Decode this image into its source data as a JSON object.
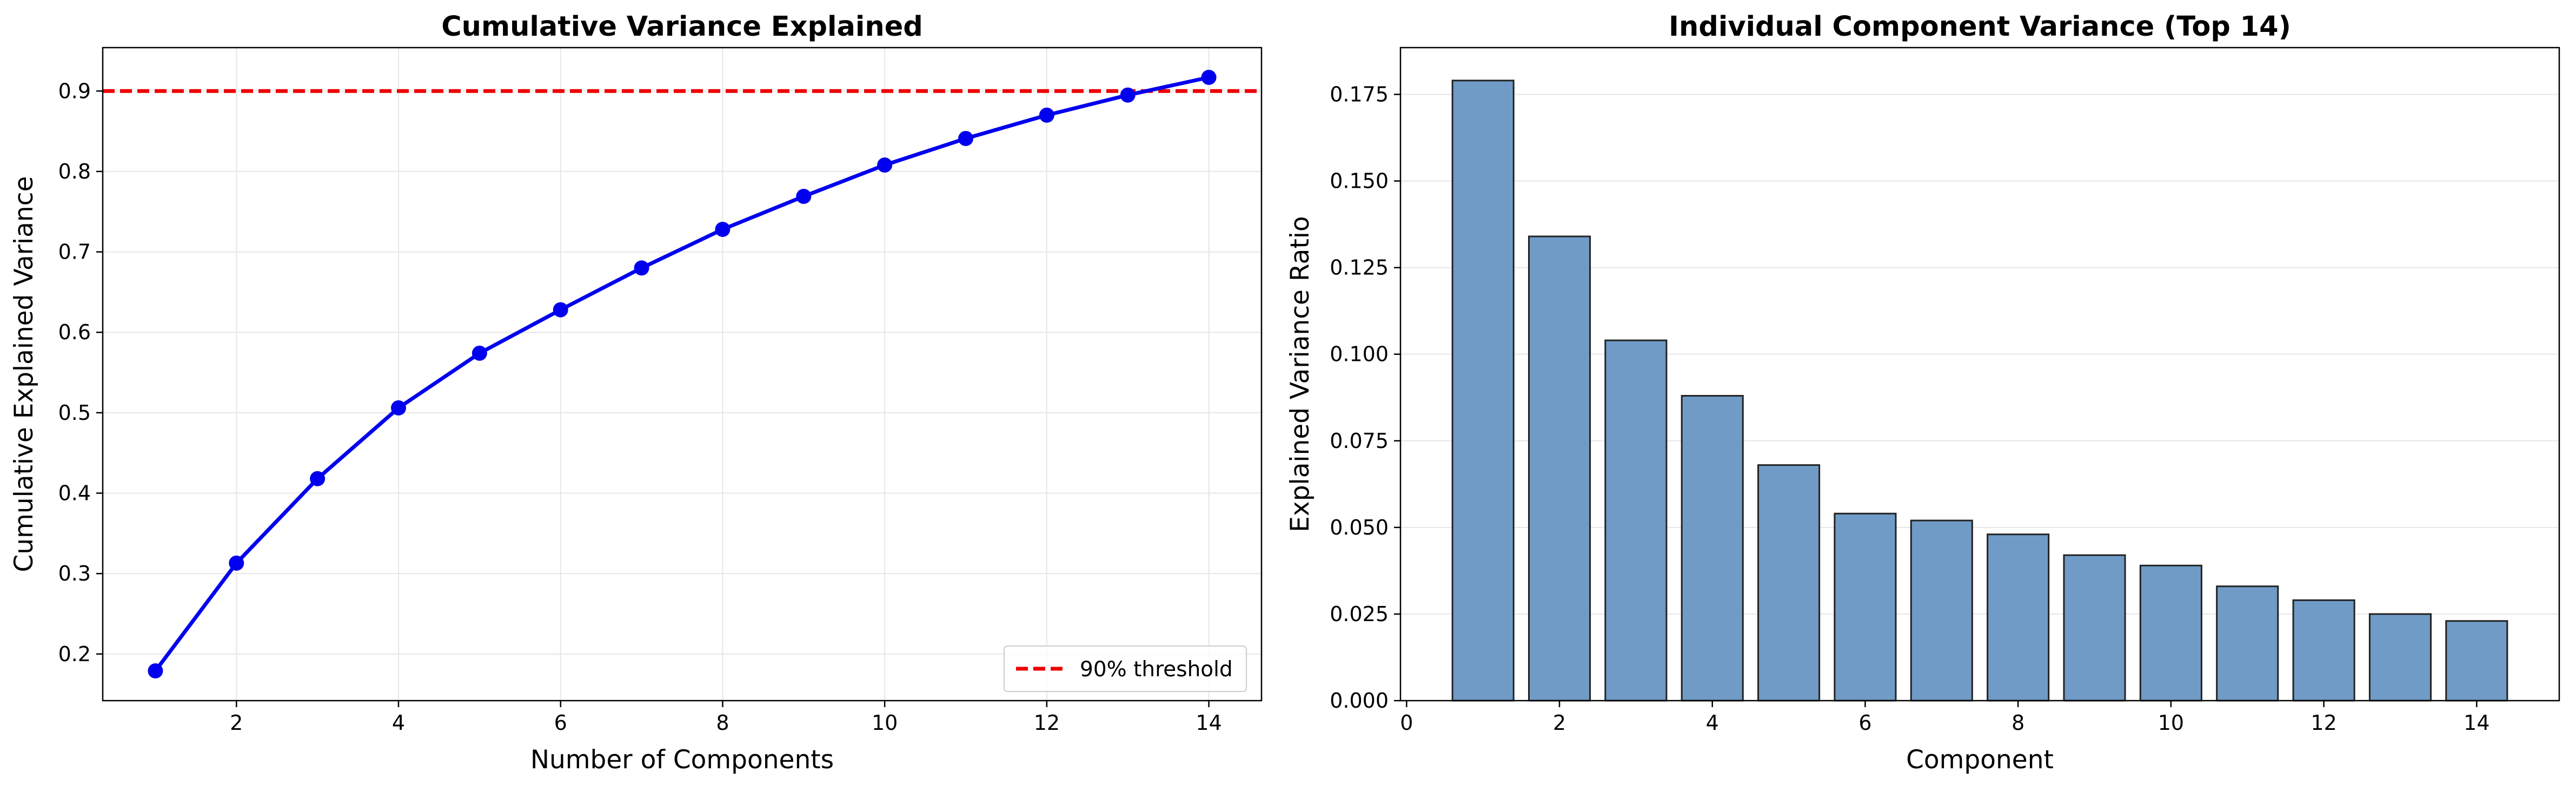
{
  "chart_data": [
    {
      "type": "line",
      "title": "Cumulative Variance Explained",
      "xlabel": "Number of Components",
      "ylabel": "Cumulative Explained Variance",
      "xlim": [
        0.35,
        14.65
      ],
      "ylim": [
        0.142,
        0.954
      ],
      "xticks": [
        2,
        4,
        6,
        8,
        10,
        12,
        14
      ],
      "yticks": [
        0.2,
        0.3,
        0.4,
        0.5,
        0.6,
        0.7,
        0.8,
        0.9
      ],
      "grid": true,
      "legend_position": "lower-right",
      "series": [
        {
          "color": "#0000ee",
          "x": [
            1,
            2,
            3,
            4,
            5,
            6,
            7,
            8,
            9,
            10,
            11,
            12,
            13,
            14
          ],
          "y": [
            0.179,
            0.313,
            0.418,
            0.506,
            0.574,
            0.628,
            0.68,
            0.728,
            0.769,
            0.808,
            0.841,
            0.87,
            0.895,
            0.917
          ]
        }
      ],
      "reference_line": {
        "y": 0.9,
        "color": "#ee0000",
        "style": "dashed",
        "label": "90% threshold"
      }
    },
    {
      "type": "bar",
      "title": "Individual Component Variance (Top 14)",
      "xlabel": "Component",
      "ylabel": "Explained Variance Ratio",
      "xlim": [
        -0.08,
        15.08
      ],
      "ylim": [
        0,
        0.1885
      ],
      "xticks": [
        0,
        2,
        4,
        6,
        8,
        10,
        12,
        14
      ],
      "yticks": [
        0.0,
        0.025,
        0.05,
        0.075,
        0.1,
        0.125,
        0.15,
        0.175
      ],
      "grid": true,
      "bar_color": "#6f9bc6",
      "categories": [
        1,
        2,
        3,
        4,
        5,
        6,
        7,
        8,
        9,
        10,
        11,
        12,
        13,
        14
      ],
      "values": [
        0.179,
        0.134,
        0.104,
        0.088,
        0.068,
        0.054,
        0.052,
        0.048,
        0.042,
        0.039,
        0.033,
        0.029,
        0.025,
        0.023
      ]
    }
  ]
}
